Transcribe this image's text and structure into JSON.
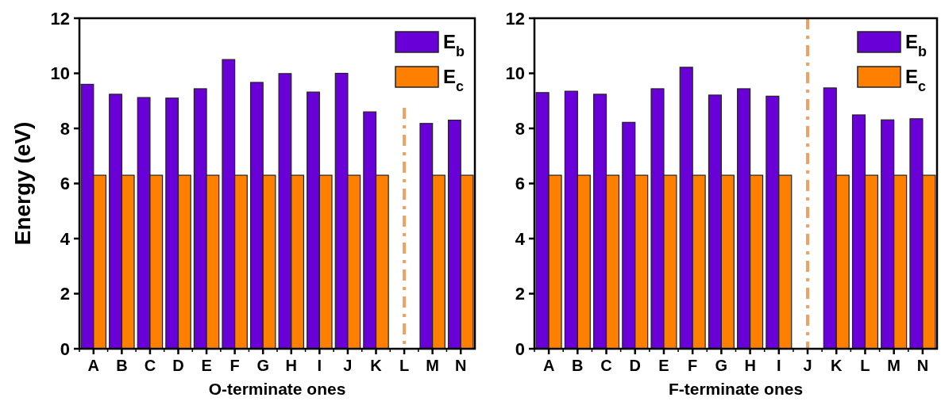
{
  "chart_data": [
    {
      "type": "bar",
      "xlabel": "O-terminate ones",
      "ylabel": "Energy (eV)",
      "categories": [
        "A",
        "B",
        "C",
        "D",
        "E",
        "F",
        "G",
        "H",
        "I",
        "J",
        "K",
        "L",
        "M",
        "N"
      ],
      "series": [
        {
          "name": "E$_{b}$",
          "color": "#6a00d8",
          "values": [
            9.6,
            9.24,
            9.12,
            9.1,
            9.44,
            10.5,
            9.67,
            9.99,
            9.32,
            10.0,
            8.6,
            null,
            8.18,
            8.3
          ]
        },
        {
          "name": "E$_{c}$",
          "color": "#ff8000",
          "values": [
            6.3,
            6.3,
            6.3,
            6.3,
            6.3,
            6.3,
            6.3,
            6.3,
            6.3,
            6.3,
            6.3,
            null,
            6.3,
            6.3
          ]
        }
      ],
      "ylim": [
        0,
        12
      ],
      "yticks": [
        0,
        2,
        4,
        6,
        8,
        10,
        12
      ],
      "legend": "top right",
      "grid": false,
      "ref_lines": [
        {
          "axis": "x",
          "value": "L",
          "color": "#f0a060",
          "line_style": "dashed"
        }
      ]
    },
    {
      "type": "bar",
      "xlabel": "F-terminate ones",
      "categories": [
        "A",
        "B",
        "C",
        "D",
        "E",
        "F",
        "G",
        "H",
        "I",
        "J",
        "K",
        "L",
        "M",
        "N"
      ],
      "series": [
        {
          "name": "E$_{b}$",
          "color": "#6a00d8",
          "values": [
            9.3,
            9.35,
            9.24,
            8.22,
            9.44,
            10.22,
            9.21,
            9.44,
            9.17,
            null,
            9.47,
            8.49,
            8.31,
            8.35
          ]
        },
        {
          "name": "E$_{c}$",
          "color": "#ff8000",
          "values": [
            6.3,
            6.3,
            6.3,
            6.3,
            6.3,
            6.3,
            6.3,
            6.3,
            6.3,
            null,
            6.3,
            6.3,
            6.3,
            6.3
          ]
        }
      ],
      "ylim": [
        0,
        12
      ],
      "yticks": [
        0,
        2,
        4,
        6,
        8,
        10,
        12
      ],
      "legend": "top right",
      "grid": false,
      "ref_lines": [
        {
          "axis": "x",
          "value": "J",
          "color": "#f0a060",
          "line_style": "dashed"
        }
      ]
    }
  ]
}
